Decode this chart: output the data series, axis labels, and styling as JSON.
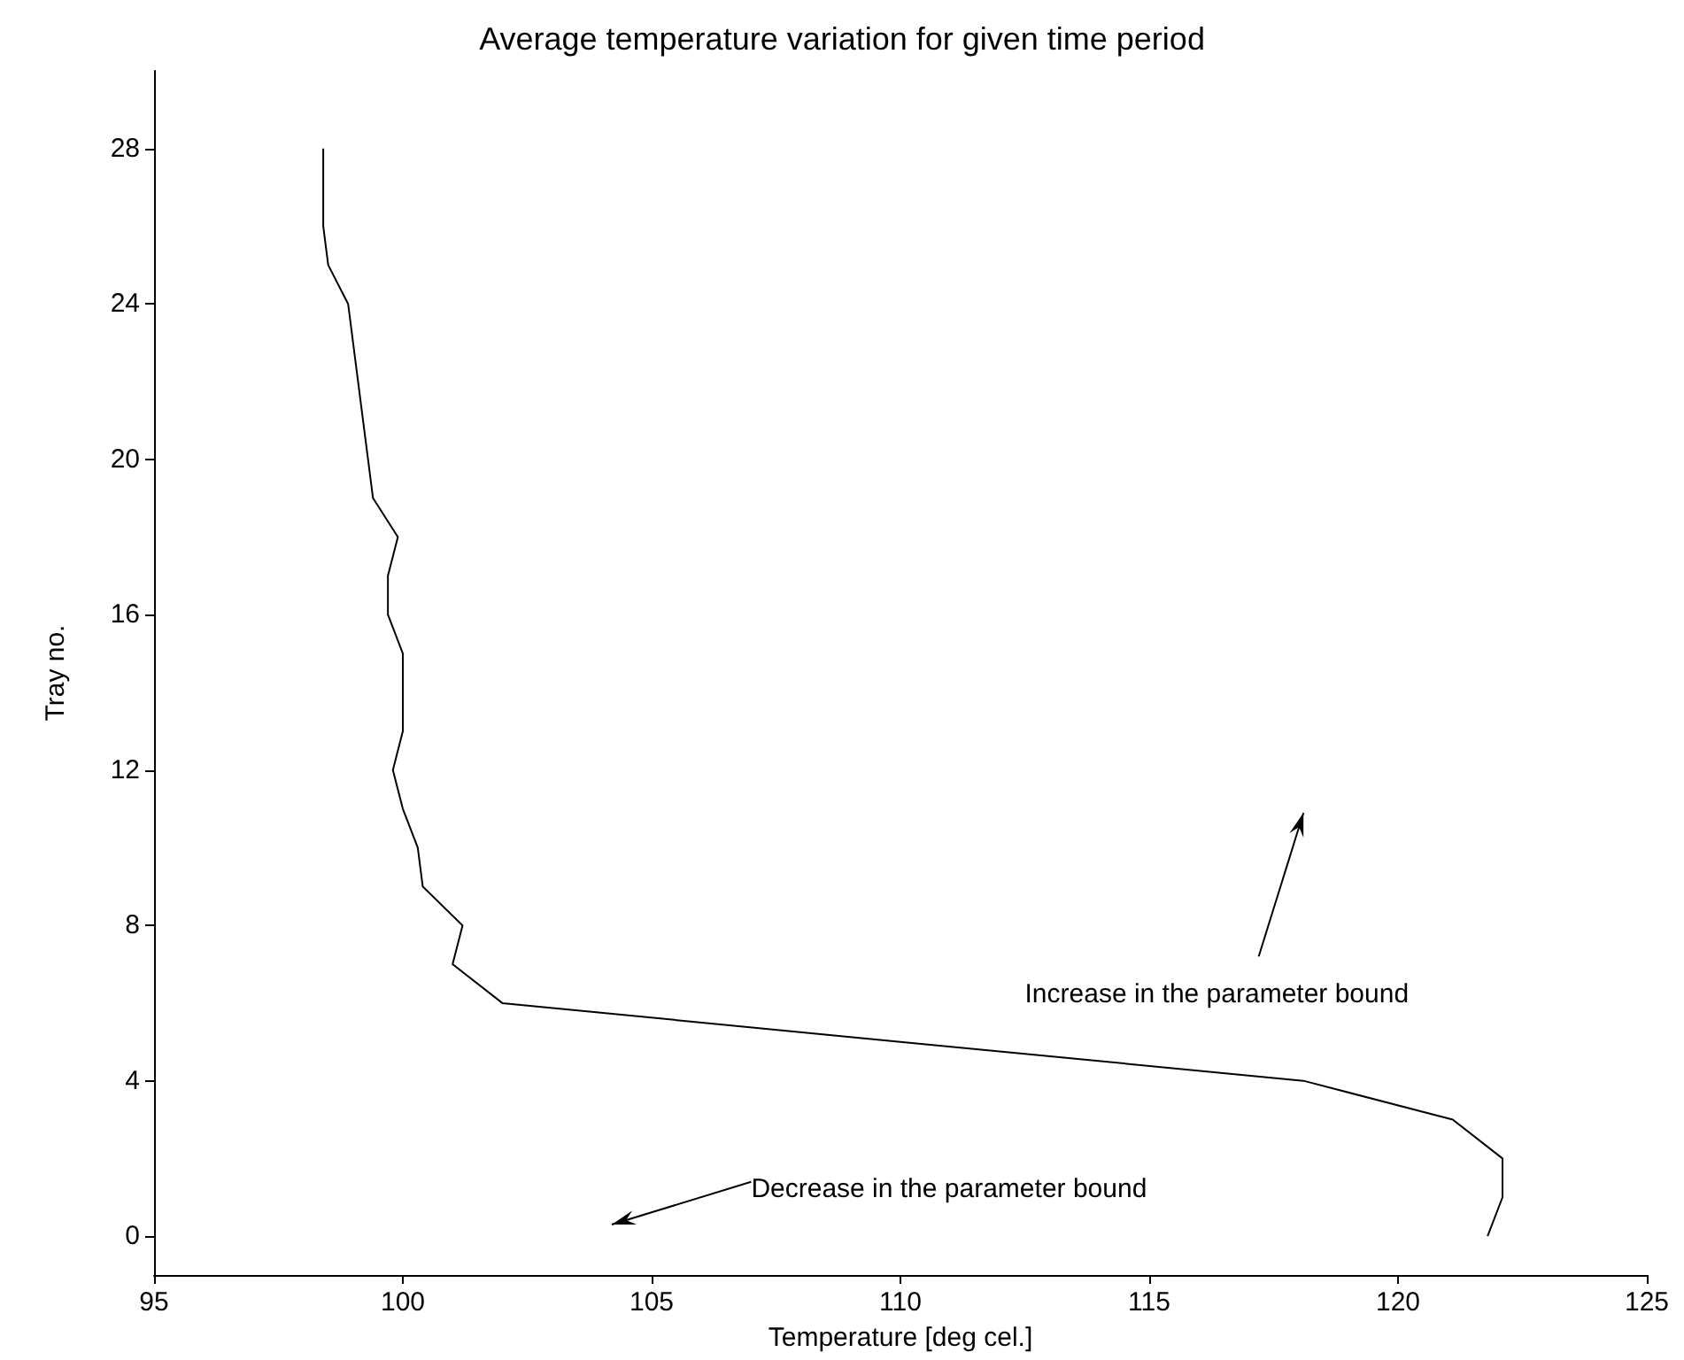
{
  "chart_data": {
    "type": "line",
    "title": "Average temperature variation for given time period",
    "xlabel": "Temperature [deg cel.]",
    "ylabel": "Tray no.",
    "xlim": [
      95,
      125
    ],
    "xticks": [
      95,
      100,
      105,
      110,
      115,
      120,
      125
    ],
    "ylim": [
      -1,
      30
    ],
    "yticks": [
      0,
      4,
      8,
      12,
      16,
      20,
      24,
      28
    ],
    "marker": "none",
    "line_style": "solid",
    "series": [
      {
        "color": "#000000",
        "x": [
          121.8,
          122.1,
          122.1,
          121.1,
          118.1,
          110,
          102,
          101,
          101.2,
          100.4,
          100.3,
          100,
          99.8,
          100,
          100,
          100,
          99.7,
          99.7,
          99.9,
          99.4,
          99.3,
          99.2,
          99.1,
          99,
          98.9,
          98.5,
          98.4,
          98.4,
          98.4
        ],
        "values": [
          0,
          1,
          2,
          3,
          4,
          5,
          6,
          7,
          8,
          9,
          10,
          11,
          12,
          13,
          14,
          15,
          16,
          17,
          18,
          19,
          20,
          21,
          22,
          23,
          24,
          25,
          26,
          27,
          28
        ]
      }
    ],
    "annotations": [
      "Increase in the parameter bound",
      "Decrease in the parameter bound"
    ]
  }
}
